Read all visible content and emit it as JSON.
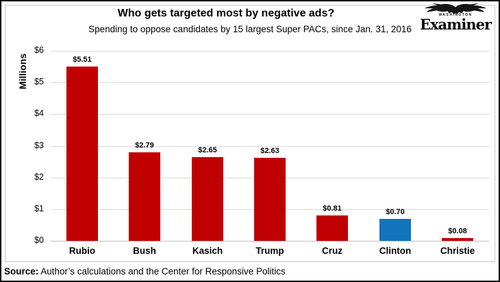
{
  "header": {
    "title": "Who gets targeted most by negative ads?",
    "subtitle": "Spending to oppose candidates by 15 largest Super PACs, since Jan. 31, 2016"
  },
  "logo": {
    "top_text": "WASHINGTON",
    "name": "Examiner",
    "eagle_icon": "eagle-icon",
    "color": "#0d0d0d"
  },
  "chart_data": {
    "type": "bar",
    "title": "Who gets targeted most by negative ads?",
    "subtitle": "Spending to oppose candidates by 15 largest Super PACs, since Jan. 31, 2016",
    "categories": [
      "Rubio",
      "Bush",
      "Kasich",
      "Trump",
      "Cruz",
      "Clinton",
      "Christie"
    ],
    "values": [
      5.51,
      2.79,
      2.65,
      2.63,
      0.81,
      0.7,
      0.08
    ],
    "value_labels": [
      "$5.51",
      "$2.79",
      "$2.65",
      "$2.63",
      "$0.81",
      "$0.70",
      "$0.08"
    ],
    "bar_colors": [
      "#c00000",
      "#c00000",
      "#c00000",
      "#c00000",
      "#c00000",
      "#1274bc",
      "#c00000"
    ],
    "xlabel": "",
    "ylabel": "Millions",
    "ylim": [
      0,
      6
    ],
    "ytick_labels": [
      "$0",
      "$1",
      "$2",
      "$3",
      "$4",
      "$5",
      "$6"
    ],
    "grid": true,
    "legend": "none",
    "units": "millions of dollars",
    "accent_red": "#c00000",
    "accent_blue": "#1274bc",
    "gridline_color": "#d9d9d9"
  },
  "source": {
    "label": "Source:",
    "text": " Author’s calculations and the Center for Responsive Politics"
  }
}
